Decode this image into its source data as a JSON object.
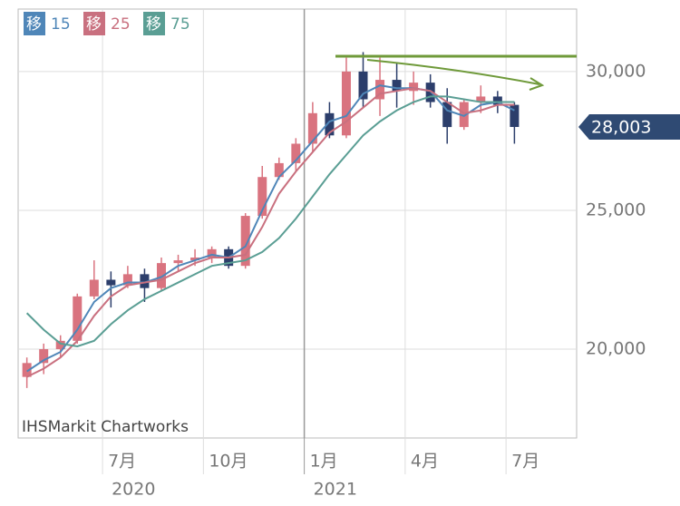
{
  "chart_data": {
    "type": "candlestick",
    "legend": [
      {
        "name": "移",
        "period": 15,
        "color": "#4f86b8"
      },
      {
        "name": "移",
        "period": 25,
        "color": "#c9707f"
      },
      {
        "name": "移",
        "period": 75,
        "color": "#5a9e94"
      }
    ],
    "x": [
      3.75,
      4.25,
      4.75,
      5.25,
      5.75,
      6.25,
      6.75,
      7.25,
      7.75,
      8.25,
      8.75,
      9.25,
      9.75,
      10.25,
      10.75,
      11.25,
      11.75,
      12.25,
      12.75,
      13.25,
      13.75,
      14.25,
      14.75,
      15.25,
      15.75,
      16.25,
      16.75,
      17.25,
      17.75,
      18.25
    ],
    "open": [
      19000,
      19500,
      20000,
      20300,
      21900,
      22500,
      22300,
      22700,
      22200,
      23100,
      23200,
      23300,
      23600,
      23000,
      24800,
      26200,
      26700,
      27400,
      28500,
      27700,
      30000,
      29000,
      29700,
      29300,
      29600,
      28900,
      28000,
      28900,
      29100,
      28800
    ],
    "high": [
      19700,
      20200,
      20500,
      22000,
      23200,
      22800,
      23000,
      22900,
      23300,
      23400,
      23600,
      23700,
      23700,
      24900,
      26600,
      26900,
      27600,
      28900,
      28900,
      30500,
      30700,
      30500,
      30300,
      30000,
      29900,
      29400,
      29000,
      29500,
      29300,
      28900
    ],
    "low": [
      18600,
      19100,
      19700,
      20200,
      21800,
      21500,
      22200,
      21700,
      22100,
      22800,
      23000,
      23100,
      22900,
      22900,
      24700,
      26100,
      26400,
      27100,
      27600,
      27600,
      28700,
      28400,
      28700,
      28800,
      28700,
      27400,
      27900,
      28500,
      28500,
      27400
    ],
    "close": [
      19500,
      20000,
      20300,
      21900,
      22500,
      22300,
      22700,
      22200,
      23100,
      23200,
      23300,
      23600,
      23000,
      24800,
      26200,
      26700,
      27400,
      28500,
      27700,
      30000,
      29000,
      29700,
      29300,
      29600,
      28900,
      28000,
      28900,
      29100,
      28800,
      28003
    ],
    "up_color": "#d9737f",
    "down_color": "#2c3e6b",
    "series": [
      {
        "values": [
          19200,
          19600,
          19900,
          20700,
          21700,
          22200,
          22400,
          22400,
          22600,
          23000,
          23200,
          23400,
          23300,
          23700,
          25000,
          26200,
          26800,
          27500,
          28200,
          28400,
          29200,
          29500,
          29400,
          29400,
          29300,
          28600,
          28400,
          28800,
          28900,
          28600
        ]
      },
      {
        "values": [
          19000,
          19300,
          19700,
          20300,
          21200,
          21900,
          22300,
          22400,
          22500,
          22800,
          23100,
          23300,
          23300,
          23400,
          24400,
          25600,
          26400,
          27100,
          27800,
          28200,
          28700,
          29200,
          29300,
          29400,
          29300,
          28900,
          28500,
          28600,
          28800,
          28800
        ]
      },
      {
        "values": [
          21300,
          20700,
          20200,
          20100,
          20300,
          20900,
          21400,
          21800,
          22100,
          22400,
          22700,
          23000,
          23100,
          23200,
          23500,
          24000,
          24700,
          25500,
          26300,
          27000,
          27700,
          28200,
          28600,
          28900,
          29100,
          29100,
          29000,
          28900,
          28900,
          28900
        ]
      }
    ],
    "xlim": [
      3.49,
      20.1
    ],
    "xticks": [
      {
        "value": 6,
        "label": "7月"
      },
      {
        "value": 9,
        "label": "10月"
      },
      {
        "value": 12,
        "label": "1月"
      },
      {
        "value": 15,
        "label": "4月"
      },
      {
        "value": 18,
        "label": "7月"
      }
    ],
    "year_labels": [
      {
        "value": 6,
        "label": "2020"
      },
      {
        "value": 12,
        "label": "2021"
      }
    ],
    "ylim": [
      16800,
      32250
    ],
    "yticks": [
      {
        "value": 20000,
        "label": "20,000"
      },
      {
        "value": 25000,
        "label": "25,000"
      },
      {
        "value": 30000,
        "label": "30,000"
      }
    ],
    "last_price": {
      "value": 28003,
      "label": "28,003"
    },
    "source": "IHSMarkit Chartworks",
    "grid": true
  }
}
